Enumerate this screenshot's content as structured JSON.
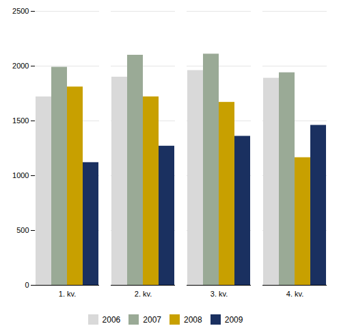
{
  "chart_data": {
    "type": "bar",
    "categories": [
      "1. kv.",
      "2. kv.",
      "3. kv.",
      "4. kv."
    ],
    "series": [
      {
        "name": "2006",
        "color": "#d9d9d9",
        "values": [
          1720,
          1900,
          1960,
          1890
        ]
      },
      {
        "name": "2007",
        "color": "#9aaa96",
        "values": [
          1990,
          2100,
          2110,
          1940
        ]
      },
      {
        "name": "2008",
        "color": "#c8a000",
        "values": [
          1810,
          1720,
          1670,
          1165
        ]
      },
      {
        "name": "2009",
        "color": "#1a3060",
        "values": [
          1120,
          1270,
          1360,
          1460
        ]
      }
    ],
    "ylim": [
      0,
      2500
    ],
    "yticks": [
      0,
      500,
      1000,
      1500,
      2000,
      2500
    ],
    "grid": true,
    "legend": "bottom"
  }
}
